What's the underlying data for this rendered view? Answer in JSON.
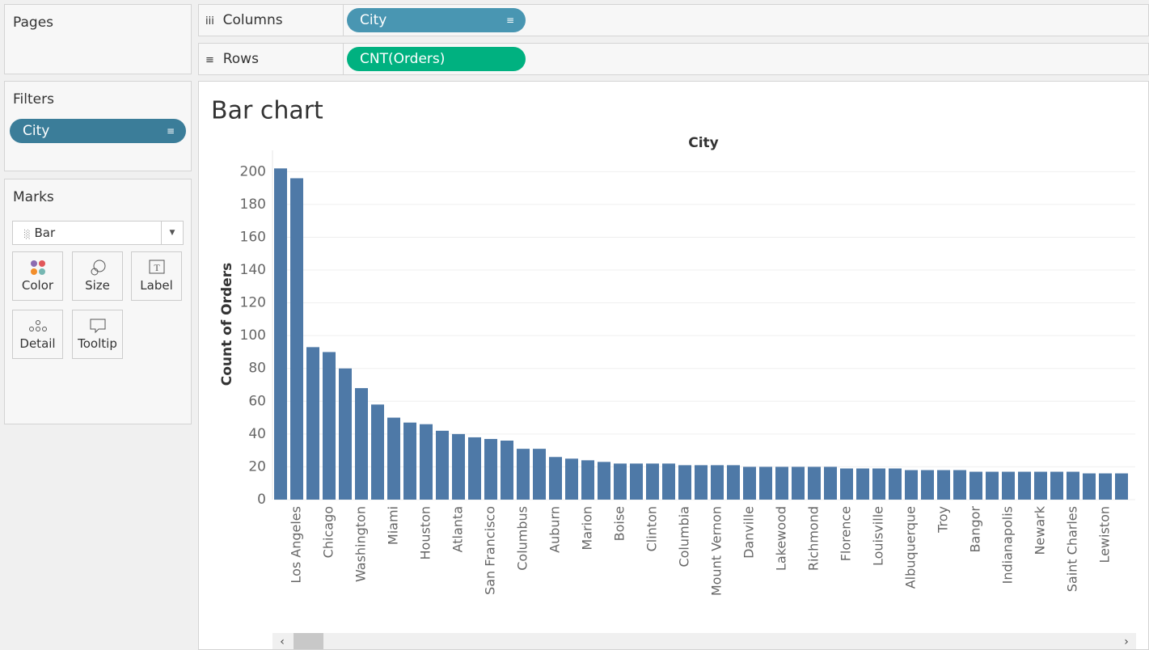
{
  "ui": {
    "pages": {
      "title": "Pages"
    },
    "filters": {
      "title": "Filters",
      "pill": "City"
    },
    "marks": {
      "title": "Marks",
      "mark_type": "Bar",
      "buttons": [
        "Color",
        "Size",
        "Label",
        "Detail",
        "Tooltip"
      ]
    },
    "columns": {
      "label": "Columns",
      "pill": "City"
    },
    "rows": {
      "label": "Rows",
      "pill": "CNT(Orders)"
    }
  },
  "chart_data": {
    "type": "bar",
    "title": "Bar chart",
    "x_label": "City",
    "y_label": "Count of Orders",
    "categories": [
      null,
      "Los Angeles",
      null,
      "Chicago",
      null,
      "Washington",
      null,
      "Miami",
      null,
      "Houston",
      null,
      "Atlanta",
      null,
      "San Francisco",
      null,
      "Columbus",
      null,
      "Auburn",
      null,
      "Marion",
      null,
      "Boise",
      null,
      "Clinton",
      null,
      "Columbia",
      null,
      "Mount Vernon",
      null,
      "Danville",
      null,
      "Lakewood",
      null,
      "Richmond",
      null,
      "Florence",
      null,
      "Louisville",
      null,
      "Albuquerque",
      null,
      "Troy",
      null,
      "Bangor",
      null,
      "Indianapolis",
      null,
      "Newark",
      null,
      "Saint Charles",
      null,
      "Lewiston",
      null
    ],
    "values": [
      202,
      196,
      93,
      90,
      80,
      68,
      58,
      50,
      47,
      46,
      42,
      40,
      38,
      37,
      36,
      31,
      31,
      26,
      25,
      24,
      23,
      22,
      22,
      22,
      22,
      21,
      21,
      21,
      21,
      20,
      20,
      20,
      20,
      20,
      20,
      19,
      19,
      19,
      19,
      18,
      18,
      18,
      18,
      17,
      17,
      17,
      17,
      17,
      17,
      17,
      16,
      16,
      16
    ],
    "color": "#4e79a7",
    "ylim": [
      0,
      213
    ],
    "yticks": [
      0,
      20,
      40,
      60,
      80,
      100,
      120,
      140,
      160,
      180,
      200
    ],
    "grid": true
  }
}
